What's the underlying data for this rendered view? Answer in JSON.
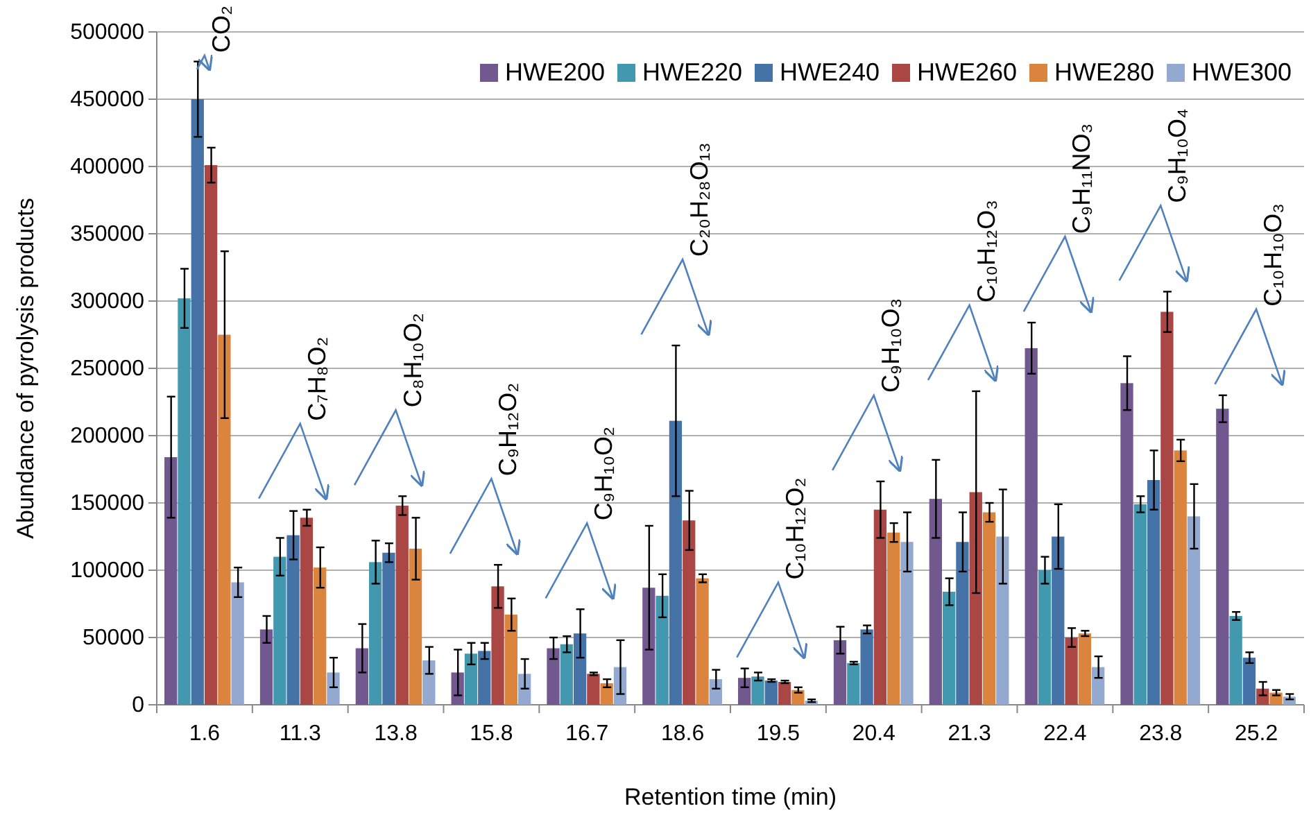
{
  "chart_data": {
    "type": "bar",
    "xlabel": "Retention time (min)",
    "ylabel": "Abundance of pyrolysis products",
    "categories": [
      "1.6",
      "11.3",
      "13.8",
      "15.8",
      "16.7",
      "18.6",
      "19.5",
      "20.4",
      "21.3",
      "22.4",
      "23.8",
      "25.2"
    ],
    "series": [
      {
        "name": "HWE200",
        "color": "#71588f",
        "values": [
          184000,
          56000,
          42000,
          24000,
          42000,
          87000,
          20000,
          48000,
          153000,
          265000,
          239000,
          220000
        ],
        "errors": [
          45000,
          10000,
          18000,
          17000,
          8000,
          46000,
          7000,
          10000,
          29000,
          19000,
          20000,
          10000
        ]
      },
      {
        "name": "HWE220",
        "color": "#4198af",
        "values": [
          302000,
          110000,
          106000,
          38000,
          45000,
          81000,
          21000,
          31000,
          84000,
          100000,
          149000,
          66000
        ],
        "errors": [
          22000,
          14000,
          16000,
          8000,
          6000,
          16000,
          3000,
          1000,
          10000,
          10000,
          6000,
          3000
        ]
      },
      {
        "name": "HWE240",
        "color": "#4572a7",
        "values": [
          450000,
          126000,
          113000,
          40000,
          53000,
          211000,
          18000,
          56000,
          121000,
          125000,
          167000,
          35000
        ],
        "errors": [
          28000,
          18000,
          7000,
          6000,
          18000,
          56000,
          1000,
          3000,
          22000,
          24000,
          22000,
          4000
        ]
      },
      {
        "name": "HWE260",
        "color": "#aa4643",
        "values": [
          401000,
          139000,
          148000,
          88000,
          23000,
          137000,
          17000,
          145000,
          158000,
          50000,
          292000,
          12000
        ],
        "errors": [
          13000,
          6000,
          7000,
          16000,
          1000,
          22000,
          1000,
          21000,
          75000,
          7000,
          15000,
          5000
        ]
      },
      {
        "name": "HWE280",
        "color": "#db843d",
        "values": [
          275000,
          102000,
          116000,
          67000,
          16000,
          94000,
          11000,
          128000,
          143000,
          53000,
          189000,
          9000
        ],
        "errors": [
          62000,
          15000,
          23000,
          12000,
          3000,
          3000,
          2000,
          7000,
          7000,
          2000,
          8000,
          2000
        ]
      },
      {
        "name": "HWE300",
        "color": "#93a9cf",
        "values": [
          91000,
          24000,
          33000,
          23000,
          28000,
          19000,
          3000,
          121000,
          125000,
          28000,
          140000,
          6000
        ],
        "errors": [
          11000,
          11000,
          10000,
          11000,
          20000,
          7000,
          1000,
          22000,
          35000,
          8000,
          24000,
          2000
        ]
      }
    ],
    "ylim": [
      0,
      500000
    ],
    "yticks": [
      0,
      50000,
      100000,
      150000,
      200000,
      250000,
      300000,
      350000,
      400000,
      450000,
      500000
    ],
    "grid": "y",
    "legend": "top right",
    "annotations": [
      "CO₂",
      "C₇H₈O₂",
      "C₈H₁₀O₂",
      "C₉H₁₂O₂",
      "C₉H₁₀O₂",
      "C₂₀H₂₈O₁₃",
      "C₁₀H₁₂O₂",
      "C₉H₁₀O₃",
      "C₁₀H₁₂O₃",
      "C₉H₁₁NO₃",
      "C₉H₁₀O₄",
      "C₁₀H₁₀O₃"
    ]
  }
}
